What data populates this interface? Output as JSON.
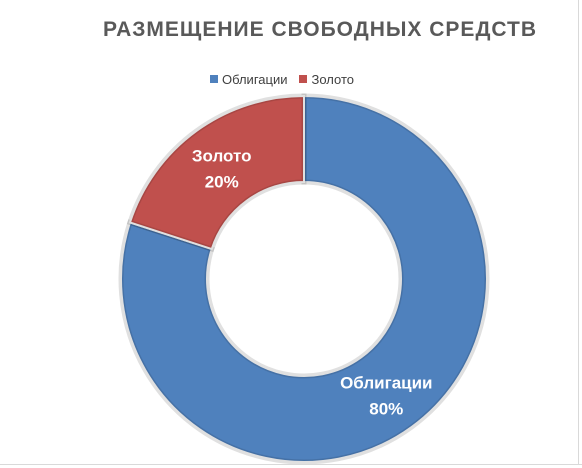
{
  "chart_data": {
    "type": "pie",
    "variant": "donut",
    "title": "РАЗМЕЩЕНИЕ СВОБОДНЫХ СРЕДСТВ",
    "legend_position": "top",
    "categories": [
      "Облигации",
      "Золото"
    ],
    "values": [
      80,
      20
    ],
    "labels": [
      {
        "name": "Облигации",
        "percent": "80%"
      },
      {
        "name": "Золото",
        "percent": "20%"
      }
    ],
    "colors": [
      "#4f81bd",
      "#c0504d"
    ]
  },
  "colors": {
    "slice_border": "#ffffff",
    "title": "#595959"
  }
}
